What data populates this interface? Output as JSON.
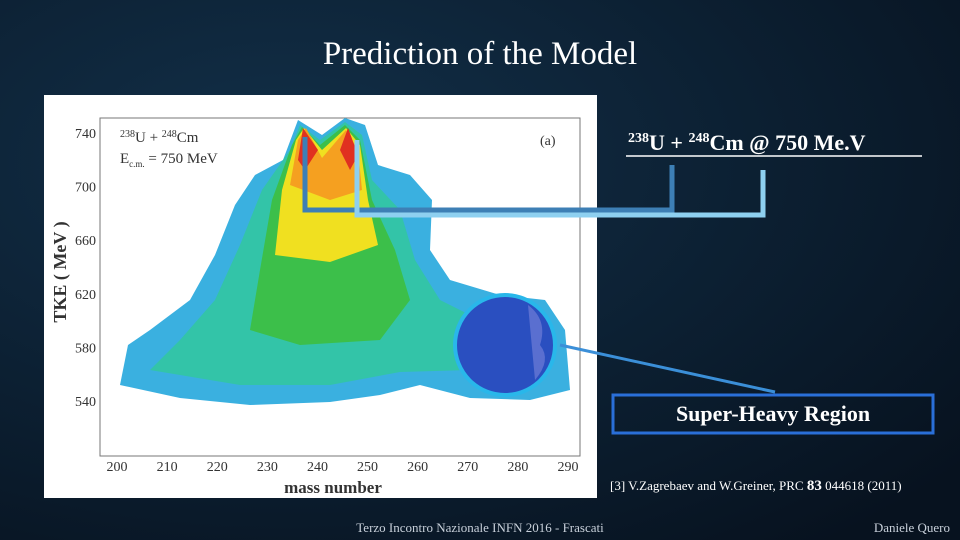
{
  "slide": {
    "title": "Prediction of the Model",
    "reaction": {
      "projectile_mass": "238",
      "projectile": "U + ",
      "target_mass": "248",
      "target": "Cm @ 750 Me.V"
    },
    "region_label": "Super-Heavy Region",
    "citation": {
      "before": "[3] V.Zagrebaev and W.Greiner, PRC ",
      "volume": "83",
      "after": " 044618 (2011)"
    },
    "footer": "Terzo Incontro Nazionale INFN 2016 - Frascati",
    "author": "Daniele Quero"
  },
  "figure": {
    "panel": "(a)",
    "reaction": {
      "projectile_mass": "238",
      "projectile": "U + ",
      "target_mass": "248",
      "target": "Cm"
    },
    "energy": {
      "symbol": "E",
      "subscript": "c.m.",
      "value": " = 750 MeV"
    },
    "y_label": "TKE ( MeV )",
    "x_label": "mass  number",
    "yticks": [
      "740",
      "700",
      "660",
      "620",
      "580",
      "540"
    ],
    "xticks": [
      "200",
      "210",
      "220",
      "230",
      "240",
      "250",
      "260",
      "270",
      "280",
      "290"
    ]
  }
}
